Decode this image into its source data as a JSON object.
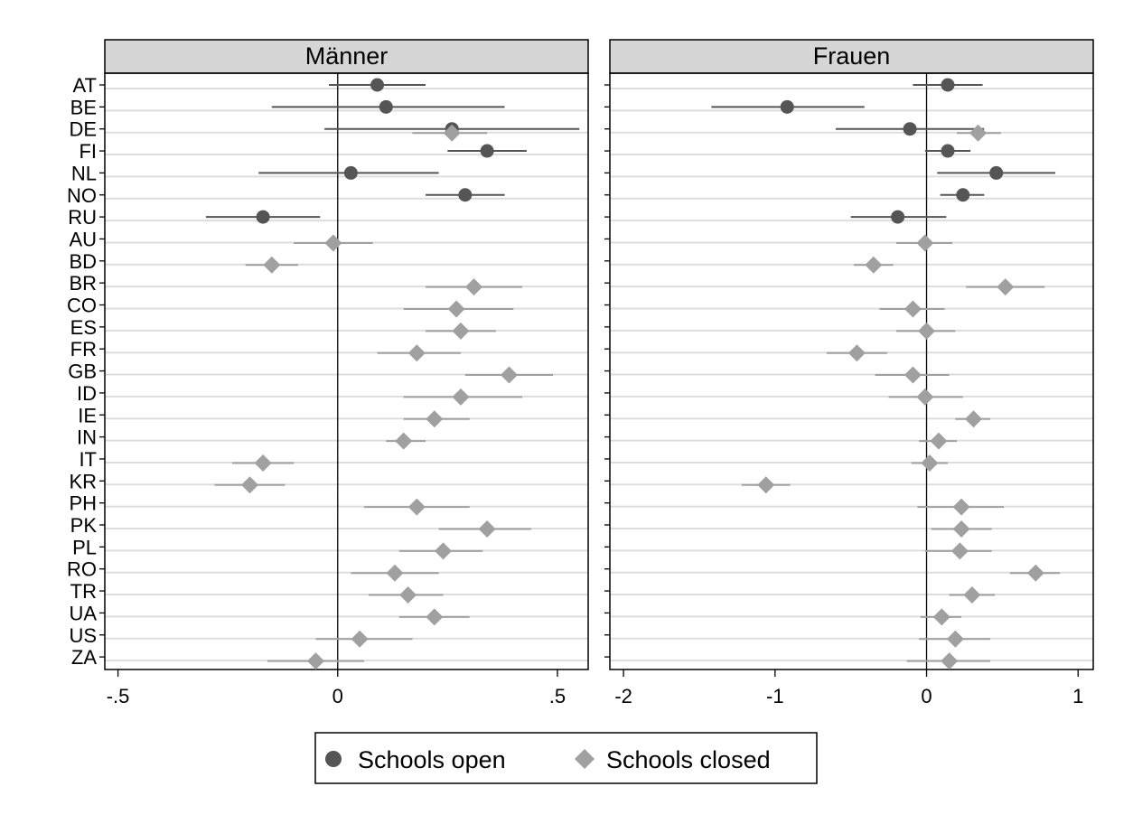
{
  "chart_data": {
    "type": "scatter",
    "subtype": "coefficient-plot",
    "categories": [
      "AT",
      "BE",
      "DE",
      "FI",
      "NL",
      "NO",
      "RU",
      "AU",
      "BD",
      "BR",
      "CO",
      "ES",
      "FR",
      "GB",
      "ID",
      "IE",
      "IN",
      "IT",
      "KR",
      "PH",
      "PK",
      "PL",
      "RO",
      "TR",
      "UA",
      "US",
      "ZA"
    ],
    "legend": {
      "placement": "bottom-center",
      "items": [
        {
          "label": "Schools open",
          "marker": "circle",
          "color": "#555555"
        },
        {
          "label": "Schools closed",
          "marker": "diamond",
          "color": "#a0a0a0"
        }
      ]
    },
    "colors": {
      "open": "#555555",
      "closed": "#a0a0a0",
      "header_bg": "#d6d6d6",
      "gridline": "#dddddd"
    },
    "panels": [
      {
        "title": "Männer",
        "xlim": [
          -0.53,
          0.57
        ],
        "xticks": [
          -0.5,
          0,
          0.5
        ],
        "xtick_labels": [
          "-.5",
          "0",
          ".5"
        ],
        "reference_line": 0,
        "series": [
          {
            "name": "Schools open",
            "marker": "circle",
            "points": [
              {
                "cat": "AT",
                "est": 0.09,
                "lo": -0.02,
                "hi": 0.2
              },
              {
                "cat": "BE",
                "est": 0.11,
                "lo": -0.15,
                "hi": 0.38
              },
              {
                "cat": "DE",
                "est": 0.26,
                "lo": -0.03,
                "hi": 0.55
              },
              {
                "cat": "FI",
                "est": 0.34,
                "lo": 0.25,
                "hi": 0.43
              },
              {
                "cat": "NL",
                "est": 0.03,
                "lo": -0.18,
                "hi": 0.23
              },
              {
                "cat": "NO",
                "est": 0.29,
                "lo": 0.2,
                "hi": 0.38
              },
              {
                "cat": "RU",
                "est": -0.17,
                "lo": -0.3,
                "hi": -0.04
              }
            ]
          },
          {
            "name": "Schools closed",
            "marker": "diamond",
            "points": [
              {
                "cat": "DE",
                "est": 0.26,
                "lo": 0.17,
                "hi": 0.34
              },
              {
                "cat": "AU",
                "est": -0.01,
                "lo": -0.1,
                "hi": 0.08
              },
              {
                "cat": "BD",
                "est": -0.15,
                "lo": -0.21,
                "hi": -0.09
              },
              {
                "cat": "BR",
                "est": 0.31,
                "lo": 0.2,
                "hi": 0.42
              },
              {
                "cat": "CO",
                "est": 0.27,
                "lo": 0.15,
                "hi": 0.4
              },
              {
                "cat": "ES",
                "est": 0.28,
                "lo": 0.2,
                "hi": 0.36
              },
              {
                "cat": "FR",
                "est": 0.18,
                "lo": 0.09,
                "hi": 0.28
              },
              {
                "cat": "GB",
                "est": 0.39,
                "lo": 0.29,
                "hi": 0.49
              },
              {
                "cat": "ID",
                "est": 0.28,
                "lo": 0.15,
                "hi": 0.42
              },
              {
                "cat": "IE",
                "est": 0.22,
                "lo": 0.15,
                "hi": 0.3
              },
              {
                "cat": "IN",
                "est": 0.15,
                "lo": 0.11,
                "hi": 0.2
              },
              {
                "cat": "IT",
                "est": -0.17,
                "lo": -0.24,
                "hi": -0.1
              },
              {
                "cat": "KR",
                "est": -0.2,
                "lo": -0.28,
                "hi": -0.12
              },
              {
                "cat": "PH",
                "est": 0.18,
                "lo": 0.06,
                "hi": 0.3
              },
              {
                "cat": "PK",
                "est": 0.34,
                "lo": 0.23,
                "hi": 0.44
              },
              {
                "cat": "PL",
                "est": 0.24,
                "lo": 0.14,
                "hi": 0.33
              },
              {
                "cat": "RO",
                "est": 0.13,
                "lo": 0.03,
                "hi": 0.23
              },
              {
                "cat": "TR",
                "est": 0.16,
                "lo": 0.07,
                "hi": 0.24
              },
              {
                "cat": "UA",
                "est": 0.22,
                "lo": 0.14,
                "hi": 0.3
              },
              {
                "cat": "US",
                "est": 0.05,
                "lo": -0.05,
                "hi": 0.17
              },
              {
                "cat": "ZA",
                "est": -0.05,
                "lo": -0.16,
                "hi": 0.06
              }
            ]
          }
        ]
      },
      {
        "title": "Frauen",
        "xlim": [
          -2.09,
          1.1
        ],
        "xticks": [
          -2,
          -1,
          0,
          1
        ],
        "xtick_labels": [
          "-2",
          "-1",
          "0",
          "1"
        ],
        "reference_line": 0,
        "series": [
          {
            "name": "Schools open",
            "marker": "circle",
            "points": [
              {
                "cat": "AT",
                "est": 0.14,
                "lo": -0.09,
                "hi": 0.37
              },
              {
                "cat": "BE",
                "est": -0.92,
                "lo": -1.42,
                "hi": -0.41
              },
              {
                "cat": "DE",
                "est": -0.11,
                "lo": -0.6,
                "hi": 0.38
              },
              {
                "cat": "FI",
                "est": 0.14,
                "lo": -0.01,
                "hi": 0.29
              },
              {
                "cat": "NL",
                "est": 0.46,
                "lo": 0.07,
                "hi": 0.85
              },
              {
                "cat": "NO",
                "est": 0.24,
                "lo": 0.09,
                "hi": 0.38
              },
              {
                "cat": "RU",
                "est": -0.19,
                "lo": -0.5,
                "hi": 0.13
              }
            ]
          },
          {
            "name": "Schools closed",
            "marker": "diamond",
            "points": [
              {
                "cat": "DE",
                "est": 0.34,
                "lo": 0.2,
                "hi": 0.49
              },
              {
                "cat": "AU",
                "est": -0.01,
                "lo": -0.2,
                "hi": 0.17
              },
              {
                "cat": "BD",
                "est": -0.35,
                "lo": -0.48,
                "hi": -0.22
              },
              {
                "cat": "BR",
                "est": 0.52,
                "lo": 0.26,
                "hi": 0.78
              },
              {
                "cat": "CO",
                "est": -0.09,
                "lo": -0.31,
                "hi": 0.12
              },
              {
                "cat": "ES",
                "est": 0.0,
                "lo": -0.2,
                "hi": 0.19
              },
              {
                "cat": "FR",
                "est": -0.46,
                "lo": -0.66,
                "hi": -0.26
              },
              {
                "cat": "GB",
                "est": -0.09,
                "lo": -0.34,
                "hi": 0.15
              },
              {
                "cat": "ID",
                "est": -0.01,
                "lo": -0.25,
                "hi": 0.24
              },
              {
                "cat": "IE",
                "est": 0.31,
                "lo": 0.19,
                "hi": 0.42
              },
              {
                "cat": "IN",
                "est": 0.08,
                "lo": -0.05,
                "hi": 0.2
              },
              {
                "cat": "IT",
                "est": 0.02,
                "lo": -0.1,
                "hi": 0.14
              },
              {
                "cat": "KR",
                "est": -1.06,
                "lo": -1.22,
                "hi": -0.9
              },
              {
                "cat": "PH",
                "est": 0.23,
                "lo": -0.06,
                "hi": 0.51
              },
              {
                "cat": "PK",
                "est": 0.23,
                "lo": 0.03,
                "hi": 0.43
              },
              {
                "cat": "PL",
                "est": 0.22,
                "lo": -0.01,
                "hi": 0.43
              },
              {
                "cat": "RO",
                "est": 0.72,
                "lo": 0.55,
                "hi": 0.88
              },
              {
                "cat": "TR",
                "est": 0.3,
                "lo": 0.15,
                "hi": 0.45
              },
              {
                "cat": "UA",
                "est": 0.1,
                "lo": -0.04,
                "hi": 0.23
              },
              {
                "cat": "US",
                "est": 0.19,
                "lo": -0.05,
                "hi": 0.42
              },
              {
                "cat": "ZA",
                "est": 0.15,
                "lo": -0.13,
                "hi": 0.42
              }
            ]
          }
        ]
      }
    ]
  }
}
